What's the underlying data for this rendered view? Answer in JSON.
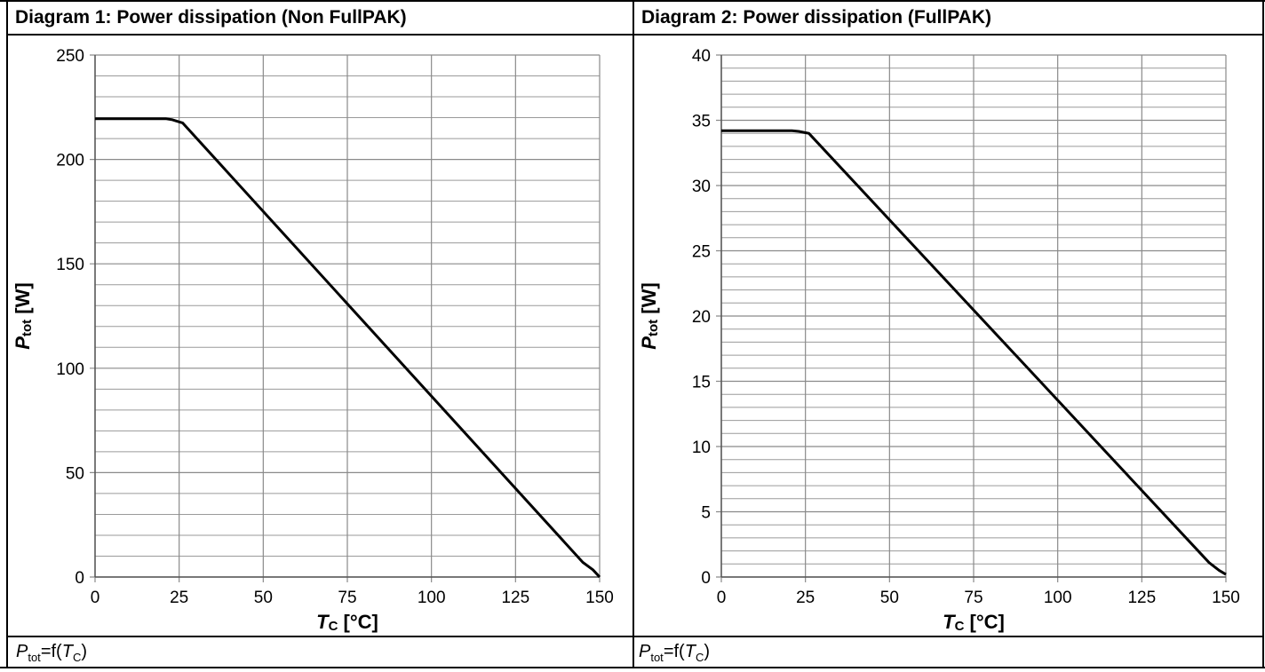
{
  "diagrams": [
    {
      "title": "Diagram 1: Power dissipation (Non FullPAK)",
      "caption": {
        "var": "P",
        "sub": "tot",
        "mid": "=f(",
        "var2": "T",
        "sub2": "C",
        "end": ")"
      },
      "chart_data": {
        "type": "line",
        "title": "Diagram 1: Power dissipation (Non FullPAK)",
        "xlabel": {
          "var": "T",
          "sub": "C",
          "unit": " [°C]"
        },
        "ylabel": {
          "var": "P",
          "sub": "tot",
          "unit": " [W]"
        },
        "xlim": [
          0,
          150
        ],
        "ylim": [
          0,
          250
        ],
        "xticks": [
          0,
          25,
          50,
          75,
          100,
          125,
          150
        ],
        "yticks": [
          0,
          50,
          100,
          150,
          200,
          250
        ],
        "grid": true,
        "series": [
          {
            "x": [
              0,
              21,
              23,
              25,
              26,
              145,
              148,
              150
            ],
            "y": [
              219.5,
              219.5,
              219,
              218,
              217.5,
              7,
              3.5,
              0
            ]
          }
        ]
      }
    },
    {
      "title": "Diagram 2: Power dissipation (FullPAK)",
      "caption": {
        "var": "P",
        "sub": "tot",
        "mid": "=f(",
        "var2": "T",
        "sub2": "C",
        "end": ")"
      },
      "chart_data": {
        "type": "line",
        "title": "Diagram 2: Power dissipation (FullPAK)",
        "xlabel": {
          "var": "T",
          "sub": "C",
          "unit": " [°C]"
        },
        "ylabel": {
          "var": "P",
          "sub": "tot",
          "unit": " [W]"
        },
        "xlim": [
          0,
          150
        ],
        "ylim": [
          0,
          40
        ],
        "xticks": [
          0,
          25,
          50,
          75,
          100,
          125,
          150
        ],
        "yticks": [
          0,
          5,
          10,
          15,
          20,
          25,
          30,
          35,
          40
        ],
        "grid": true,
        "series": [
          {
            "x": [
              0,
              21,
              23,
              25,
              26,
              145,
              148,
              150
            ],
            "y": [
              34.2,
              34.2,
              34.15,
              34.05,
              34,
              1.1,
              0.5,
              0.2
            ]
          }
        ]
      }
    }
  ]
}
